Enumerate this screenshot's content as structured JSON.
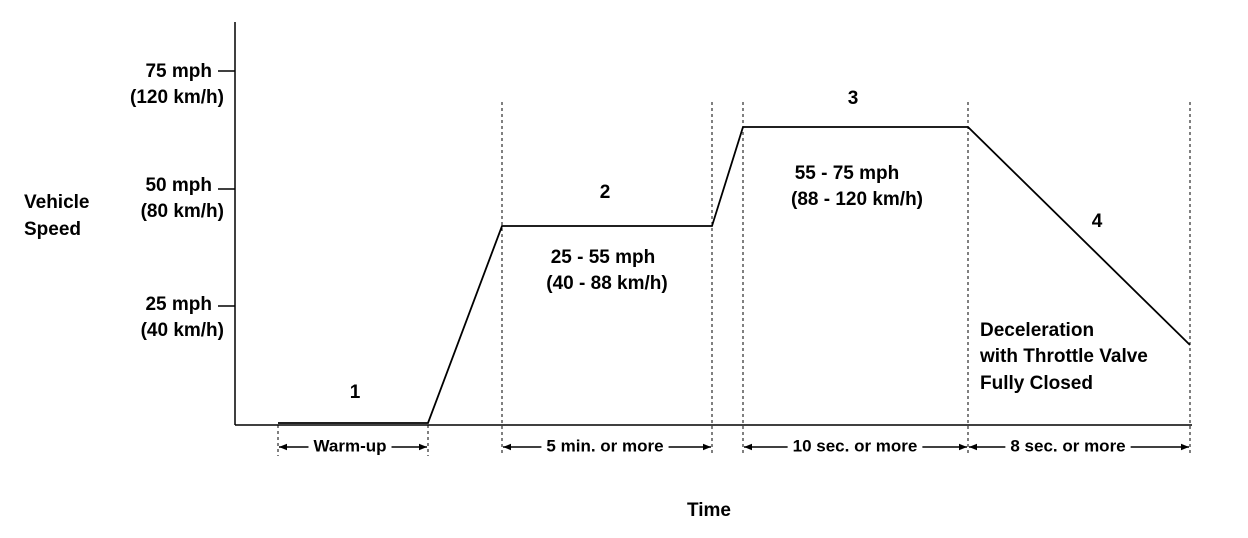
{
  "y_label": [
    "Vehicle",
    "Speed"
  ],
  "y_ticks": [
    [
      "75 mph",
      "(120 km/h)"
    ],
    [
      "50 mph",
      "(80 km/h)"
    ],
    [
      "25 mph",
      "(40 km/h)"
    ]
  ],
  "x_label": "Time",
  "phases": [
    {
      "number": "1",
      "duration": "Warm-up"
    },
    {
      "number": "2",
      "speed": [
        "25 - 55 mph",
        "(40 - 88 km/h)"
      ],
      "duration": "5 min. or  more"
    },
    {
      "number": "3",
      "speed": [
        "55 - 75 mph",
        "(88 - 120 km/h)"
      ],
      "duration": "10 sec. or  more"
    },
    {
      "number": "4",
      "note": [
        "Deceleration",
        "with Throttle Valve",
        "Fully Closed"
      ],
      "duration": "8 sec. or  more"
    }
  ]
}
